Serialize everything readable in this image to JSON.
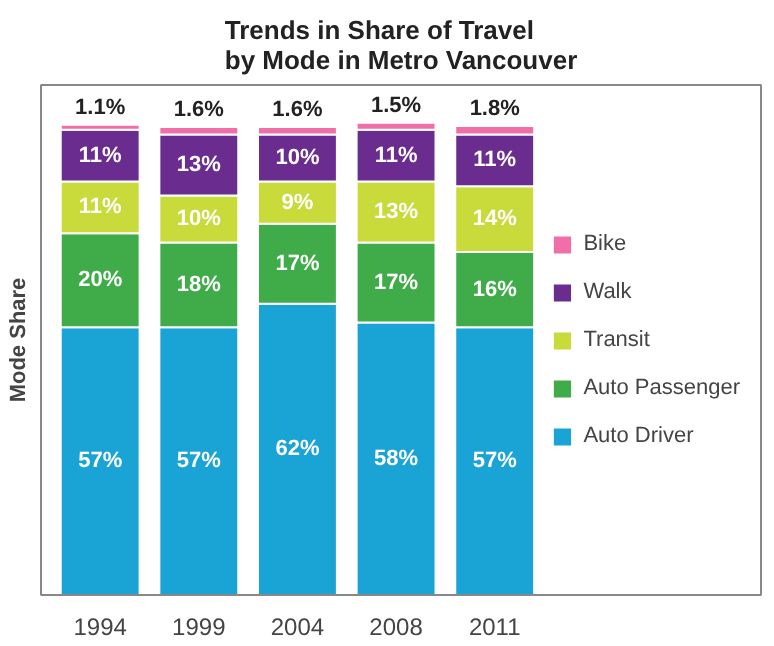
{
  "chart_data": {
    "type": "bar",
    "stacked": true,
    "title": "Trends in Share of Travel by Mode in Metro Vancouver",
    "ylabel": "Mode Share",
    "categories": [
      "1994",
      "1999",
      "2004",
      "2008",
      "2011"
    ],
    "tick_labels": "x",
    "legend": "right",
    "grid": false,
    "series": [
      {
        "name": "Auto Driver",
        "color": "#1aa3d5",
        "values": [
          57,
          57,
          62,
          58,
          57
        ],
        "value_labels": [
          "57%",
          "57%",
          "62%",
          "58%",
          "57%"
        ]
      },
      {
        "name": "Auto Passenger",
        "color": "#3fac49",
        "values": [
          20,
          18,
          17,
          17,
          16
        ],
        "value_labels": [
          "20%",
          "18%",
          "17%",
          "17%",
          "16%"
        ]
      },
      {
        "name": "Transit",
        "color": "#c9da3b",
        "values": [
          11,
          10,
          9,
          13,
          14
        ],
        "value_labels": [
          "11%",
          "10%",
          "9%",
          "13%",
          "14%"
        ]
      },
      {
        "name": "Walk",
        "color": "#6a2d8f",
        "values": [
          11,
          13,
          10,
          11,
          11
        ],
        "value_labels": [
          "11%",
          "13%",
          "10%",
          "11%",
          "11%"
        ]
      },
      {
        "name": "Bike",
        "color": "#f06fa8",
        "values": [
          1.1,
          1.6,
          1.6,
          1.5,
          1.8
        ],
        "value_labels": [
          "1.1%",
          "1.6%",
          "1.6%",
          "1.5%",
          "1.8%"
        ]
      }
    ]
  }
}
